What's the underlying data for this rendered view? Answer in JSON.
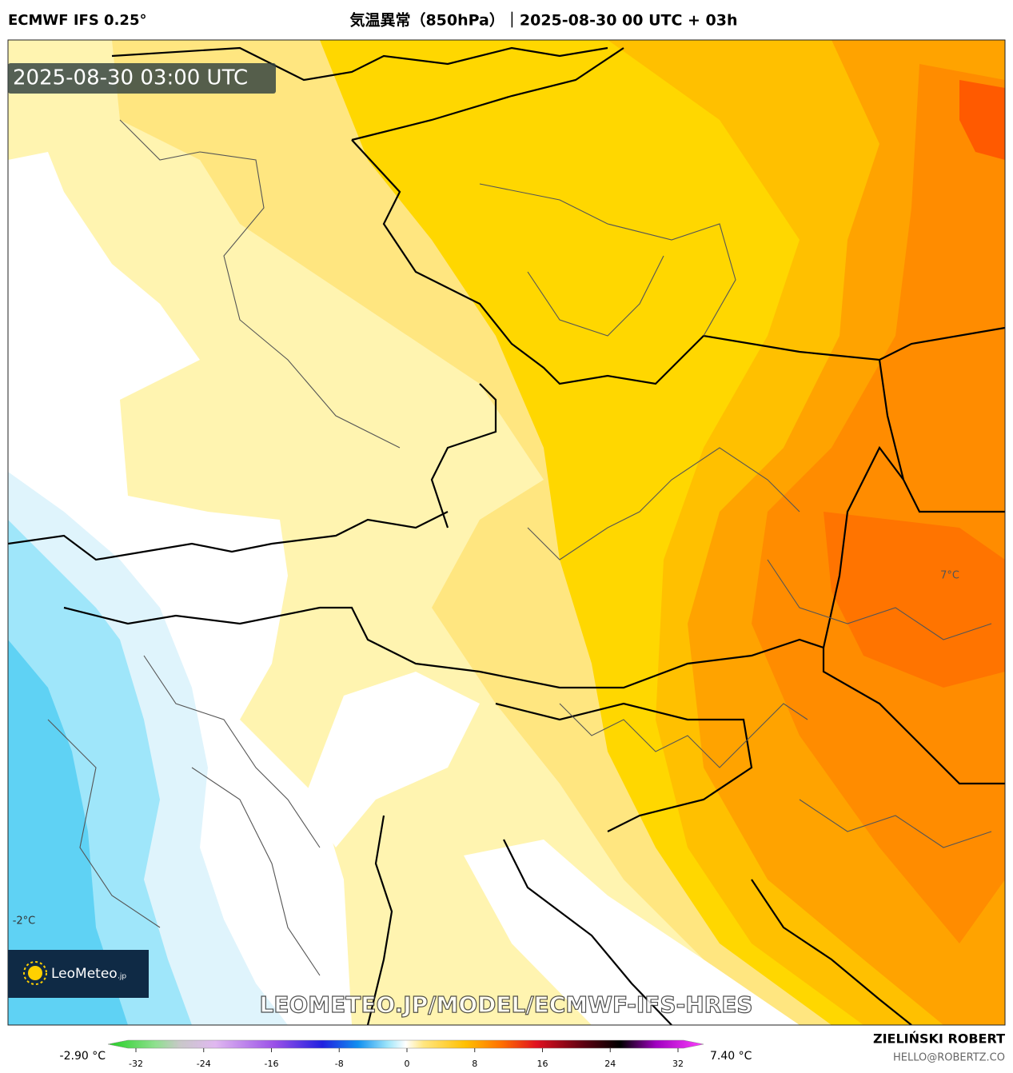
{
  "header": {
    "model": "ECMWF IFS 0.25°",
    "title": "気温異常（850hPa）｜2025-08-30 00 UTC + 03h"
  },
  "map": {
    "timestamp": "2025-08-30 03:00 UTC",
    "labels": [
      "7°C",
      "-2°C"
    ],
    "logo": {
      "name": "LeoMeteo",
      "suffix": ".jp"
    },
    "watermark": "LEOMETEO.JP/MODEL/ECMWF-IFS-HRES"
  },
  "colorbar": {
    "min_label": "-2.90 °C",
    "max_label": "7.40 °C",
    "ticks": [
      -32,
      -24,
      -16,
      -8,
      0,
      8,
      16,
      24,
      32
    ]
  },
  "footer": {
    "author": "ZIELIŃSKI ROBERT",
    "email": "HELLO@ROBERTZ.CO"
  }
}
